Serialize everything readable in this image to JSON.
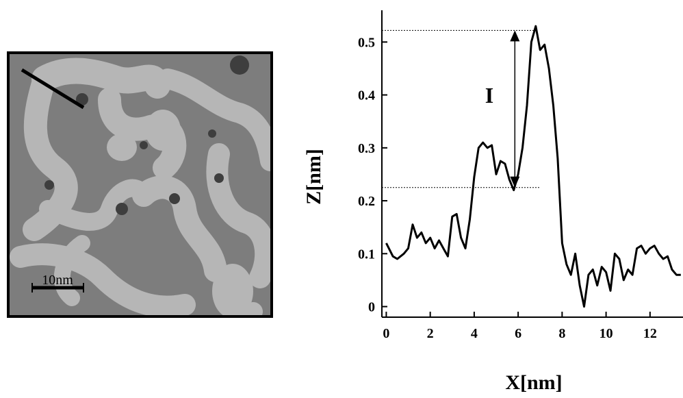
{
  "stm_image": {
    "scale_bar_label": "10nm",
    "palette": {
      "dark": "#3e3e3e",
      "mid": "#7d7d7d",
      "light": "#b6b6b6",
      "frame": "#000000"
    }
  },
  "chart_data": {
    "type": "line",
    "xlabel": "X[nm]",
    "ylabel": "Z[nm]",
    "xlim": [
      -0.2,
      13.5
    ],
    "ylim": [
      -0.02,
      0.56
    ],
    "x_ticks": [
      0,
      2,
      4,
      6,
      8,
      10,
      12
    ],
    "y_ticks": [
      0,
      0.1,
      0.2,
      0.3,
      0.4,
      0.5
    ],
    "annotation": {
      "text": "I",
      "x_at": 5.85,
      "from_y": 0.225,
      "to_y": 0.522
    },
    "reference_lines": [
      {
        "y": 0.522,
        "x_start": -0.2,
        "x_end": 6.9
      },
      {
        "y": 0.225,
        "x_start": -0.2,
        "x_end": 7.0
      }
    ],
    "line_color": "#000000",
    "series": [
      {
        "x": [
          0.0,
          0.3,
          0.5,
          0.8,
          1.0,
          1.2,
          1.4,
          1.6,
          1.8,
          2.0,
          2.2,
          2.4,
          2.6,
          2.8,
          3.0,
          3.2,
          3.4,
          3.6,
          3.8,
          4.0,
          4.2,
          4.4,
          4.6,
          4.8,
          5.0,
          5.2,
          5.4,
          5.6,
          5.8,
          6.0,
          6.2,
          6.4,
          6.6,
          6.8,
          7.0,
          7.2,
          7.4,
          7.6,
          7.8,
          8.0,
          8.2,
          8.4,
          8.6,
          8.8,
          9.0,
          9.2,
          9.4,
          9.6,
          9.8,
          10.0,
          10.2,
          10.4,
          10.6,
          10.8,
          11.0,
          11.2,
          11.4,
          11.6,
          11.8,
          12.0,
          12.2,
          12.4,
          12.6,
          12.8,
          13.0,
          13.2,
          13.4
        ],
        "y": [
          0.12,
          0.095,
          0.09,
          0.1,
          0.11,
          0.155,
          0.13,
          0.14,
          0.12,
          0.13,
          0.11,
          0.125,
          0.11,
          0.095,
          0.17,
          0.175,
          0.13,
          0.11,
          0.165,
          0.245,
          0.3,
          0.31,
          0.3,
          0.305,
          0.25,
          0.275,
          0.27,
          0.24,
          0.22,
          0.25,
          0.3,
          0.38,
          0.5,
          0.53,
          0.485,
          0.495,
          0.45,
          0.38,
          0.28,
          0.12,
          0.08,
          0.06,
          0.1,
          0.04,
          0.0,
          0.06,
          0.07,
          0.04,
          0.075,
          0.065,
          0.03,
          0.1,
          0.09,
          0.05,
          0.07,
          0.06,
          0.11,
          0.115,
          0.1,
          0.11,
          0.115,
          0.1,
          0.09,
          0.095,
          0.07,
          0.06,
          0.06
        ]
      }
    ]
  }
}
